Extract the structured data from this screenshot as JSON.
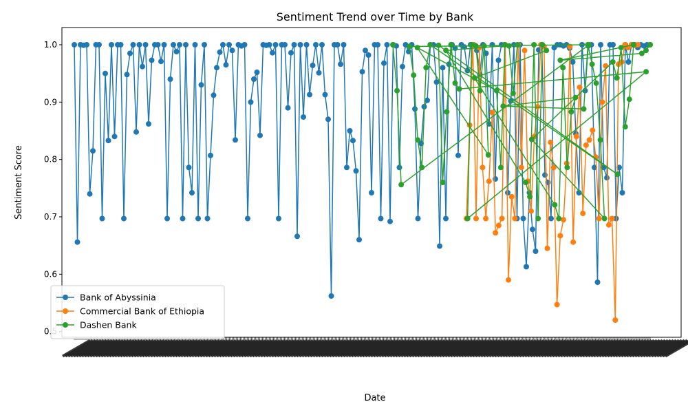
{
  "chart_data": {
    "type": "line",
    "title": "Sentiment Trend over Time by Bank",
    "xlabel": "Date",
    "ylabel": "Sentiment Score",
    "ylim": [
      0.49,
      1.03
    ],
    "yticks": [
      0.5,
      0.6,
      0.7,
      0.8,
      0.9,
      1.0
    ],
    "ytick_labels": [
      "0.5",
      "0.6",
      "0.7",
      "0.8",
      "0.9",
      "1.0"
    ],
    "x_tick_count": 420,
    "x_tick_labels_note": "Dense overlapping date tick labels (illegible)",
    "legend_position": "lower-left",
    "grid": false,
    "series": [
      {
        "name": "Bank of Abyssinia",
        "color": "#1f77b4",
        "x_range": [
          0,
          235
        ],
        "values": [
          1.0,
          0.656,
          1.0,
          0.999,
          1.0,
          0.74,
          0.815,
          1.0,
          1.0,
          0.697,
          0.95,
          0.833,
          1.0,
          0.84,
          1.0,
          1.0,
          0.697,
          0.948,
          0.985,
          1.0,
          0.848,
          1.0,
          0.962,
          1.0,
          0.862,
          0.973,
          1.0,
          1.0,
          0.971,
          1.0,
          0.697,
          0.94,
          1.0,
          0.988,
          1.0,
          0.697,
          1.0,
          0.786,
          0.742,
          1.0,
          0.697,
          0.93,
          1.0,
          0.697,
          0.807,
          0.912,
          0.96,
          0.987,
          1.0,
          0.965,
          1.0,
          0.99,
          0.834,
          1.0,
          0.998,
          1.0,
          0.697,
          0.9,
          0.94,
          0.952,
          0.842,
          1.0,
          0.999,
          1.0,
          0.986,
          1.0,
          0.697,
          1.0,
          1.0,
          0.89,
          0.986,
          1.0,
          0.666,
          1.0,
          0.874,
          1.0,
          0.913,
          0.964,
          1.0,
          0.951,
          1.0,
          0.913,
          0.87,
          0.562,
          1.0,
          1.0,
          0.966,
          1.0,
          0.786,
          0.85,
          0.833,
          0.78,
          0.66,
          0.953,
          0.99,
          0.982,
          0.742,
          1.0,
          1.0,
          0.697,
          0.968,
          1.0,
          0.692,
          1.0,
          0.998,
          0.786,
          0.962,
          1.0,
          0.988,
          1.0,
          0.888,
          0.697,
          0.828,
          0.892,
          0.903,
          1.0,
          1.0,
          0.935,
          0.649,
          0.96,
          0.697,
          0.966,
          1.0,
          0.994,
          0.807,
          1.0,
          0.996,
          0.955,
          1.0,
          1.0,
          0.99,
          0.948,
          1.0,
          0.985,
          0.862,
          1.0,
          0.766,
          0.973,
          1.0,
          1.0,
          0.742,
          0.902,
          1.0,
          0.697,
          1.0,
          0.697,
          0.613,
          0.742,
          0.678,
          0.64,
          0.991,
          1.0,
          0.773,
          0.76,
          0.697,
          0.995,
          1.0,
          1.0,
          0.998,
          1.0,
          0.994,
          0.97,
          0.845,
          0.742,
          1.0,
          0.92,
          0.998,
          1.0,
          0.786,
          0.586,
          1.0,
          0.786,
          0.768,
          1.0,
          1.0,
          0.697,
          0.786,
          0.742,
          1.0,
          0.97,
          1.0,
          1.0,
          0.995,
          1.0,
          0.998,
          1.0,
          1.0
        ]
      },
      {
        "name": "Commercial Bank of Ethiopia",
        "color": "#ff7f0e",
        "x_range": [
          160,
          230
        ],
        "values": [
          0.697,
          0.86,
          1.0,
          0.697,
          0.995,
          0.786,
          0.697,
          0.762,
          0.882,
          0.672,
          0.685,
          0.697,
          1.0,
          0.59,
          0.735,
          0.697,
          1.0,
          0.786,
          0.99,
          0.762,
          0.71,
          0.84,
          0.892,
          1.0,
          0.997,
          0.645,
          0.83,
          0.786,
          0.547,
          0.667,
          0.695,
          0.793,
          0.997,
          0.656,
          0.84,
          0.926,
          0.706,
          0.825,
          0.834,
          0.851,
          0.804,
          0.697,
          0.9,
          0.963,
          0.686,
          0.697,
          0.52,
          0.966,
          0.97,
          1.0,
          0.995,
          1.0,
          0.999,
          1.0
        ]
      },
      {
        "name": "Dashen Bank",
        "color": "#2ca02c",
        "x_range": [
          130,
          235
        ],
        "values": [
          1.0,
          0.92,
          0.756,
          1.0,
          0.997,
          0.947,
          0.834,
          0.786,
          0.96,
          1.0,
          0.774,
          0.999,
          0.76,
          0.883,
          1.0,
          0.933,
          0.923,
          0.953,
          0.697,
          1.0,
          0.998,
          0.92,
          0.998,
          0.808,
          0.995,
          0.92,
          0.786,
          1.0,
          0.998,
          0.915,
          1.0,
          0.99,
          0.76,
          0.735,
          1.0,
          0.697,
          1.0,
          0.99,
          0.942,
          0.721,
          0.697,
          0.96,
          0.786,
          0.883,
          0.908,
          0.893,
          0.888,
          1.0,
          0.966,
          0.933,
          0.834,
          0.697,
          0.835,
          0.97,
          0.942,
          0.995,
          0.857,
          0.905,
          1.0,
          0.973,
          0.985,
          0.99,
          1.0
        ]
      }
    ]
  }
}
